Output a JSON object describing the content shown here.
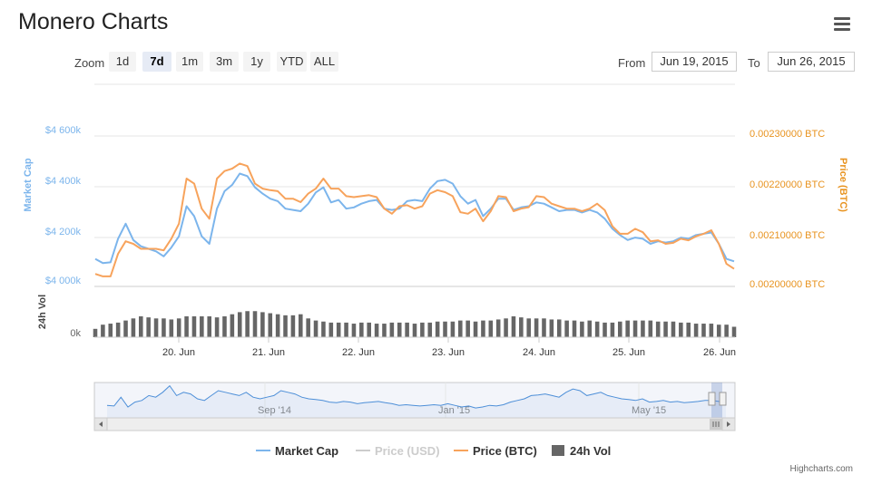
{
  "title": "Monero Charts",
  "menu_icon": "hamburger-menu-icon",
  "zoom": {
    "label": "Zoom",
    "buttons": [
      "1d",
      "7d",
      "1m",
      "3m",
      "1y",
      "YTD",
      "ALL"
    ],
    "active": "7d"
  },
  "range": {
    "from_label": "From",
    "from_value": "Jun 19, 2015",
    "to_label": "To",
    "to_value": "Jun 26, 2015"
  },
  "colors": {
    "market_cap": "#7cb5ec",
    "price_btc": "#f7a35c",
    "price_usd": "#cccccc",
    "volume": "#666666",
    "navigator": "#4d8fd8"
  },
  "chart_data": {
    "type": "line",
    "x_tick_labels": [
      "20. Jun",
      "21. Jun",
      "22. Jun",
      "23. Jun",
      "24. Jun",
      "25. Jun",
      "26. Jun"
    ],
    "left_axis": {
      "title": "Market Cap",
      "tick_labels": [
        "$4 000k",
        "$4 200k",
        "$4 400k",
        "$4 600k"
      ],
      "range": [
        4000,
        4600
      ]
    },
    "right_axis": {
      "title": "Price (BTC)",
      "tick_labels": [
        "0.00200000 BTC",
        "0.00210000 BTC",
        "0.00220000 BTC",
        "0.00230000 BTC"
      ],
      "range": [
        0.002,
        0.0023
      ]
    },
    "volume_axis": {
      "title": "24h Vol",
      "tick_labels": [
        "0k"
      ]
    },
    "series": [
      {
        "name": "Market Cap",
        "values": [
          4110,
          4093,
          4096,
          4190,
          4250,
          4185,
          4160,
          4150,
          4140,
          4120,
          4155,
          4200,
          4320,
          4280,
          4200,
          4170,
          4310,
          4380,
          4405,
          4450,
          4440,
          4395,
          4370,
          4350,
          4340,
          4310,
          4305,
          4300,
          4330,
          4375,
          4395,
          4335,
          4345,
          4310,
          4315,
          4330,
          4340,
          4345,
          4310,
          4305,
          4310,
          4340,
          4345,
          4340,
          4390,
          4420,
          4425,
          4410,
          4360,
          4330,
          4345,
          4280,
          4310,
          4350,
          4350,
          4305,
          4315,
          4320,
          4335,
          4330,
          4315,
          4300,
          4305,
          4305,
          4295,
          4305,
          4295,
          4270,
          4230,
          4205,
          4185,
          4195,
          4190,
          4170,
          4180,
          4175,
          4180,
          4195,
          4190,
          4205,
          4210,
          4215,
          4170,
          4110,
          4100
        ]
      },
      {
        "name": "Price (BTC)",
        "values": [
          0.002025,
          0.00202,
          0.00202,
          0.002065,
          0.00209,
          0.002085,
          0.002075,
          0.002075,
          0.002075,
          0.002072,
          0.002095,
          0.002125,
          0.002215,
          0.002205,
          0.002155,
          0.002135,
          0.002215,
          0.00223,
          0.002235,
          0.002245,
          0.00224,
          0.002205,
          0.002195,
          0.002192,
          0.00219,
          0.002175,
          0.002175,
          0.002168,
          0.002185,
          0.002195,
          0.002215,
          0.002195,
          0.002195,
          0.00218,
          0.002178,
          0.00218,
          0.002182,
          0.002178,
          0.002155,
          0.002145,
          0.00216,
          0.002162,
          0.002155,
          0.00216,
          0.002185,
          0.002192,
          0.002188,
          0.00218,
          0.002148,
          0.002145,
          0.002155,
          0.00213,
          0.00215,
          0.00218,
          0.002178,
          0.00215,
          0.002155,
          0.002158,
          0.00218,
          0.002178,
          0.002165,
          0.00216,
          0.002155,
          0.002155,
          0.00215,
          0.002155,
          0.002165,
          0.002152,
          0.00212,
          0.002105,
          0.002105,
          0.002115,
          0.002108,
          0.00209,
          0.002092,
          0.002085,
          0.002087,
          0.002095,
          0.002092,
          0.0021,
          0.002105,
          0.002112,
          0.002085,
          0.002045,
          0.002035
        ]
      },
      {
        "name": "24h Vol",
        "values": [
          8,
          12,
          13,
          14,
          16,
          18,
          20,
          19,
          18,
          18,
          17,
          18,
          20,
          20,
          20,
          20,
          19,
          20,
          22,
          24,
          25,
          25,
          24,
          23,
          22,
          21,
          21,
          22,
          18,
          16,
          15,
          14,
          14,
          14,
          13,
          14,
          14,
          13,
          13,
          14,
          14,
          14,
          13,
          14,
          14,
          15,
          15,
          15,
          16,
          16,
          15,
          16,
          16,
          17,
          18,
          20,
          19,
          18,
          18,
          18,
          17,
          17,
          16,
          16,
          15,
          16,
          15,
          14,
          14,
          15,
          16,
          16,
          16,
          16,
          15,
          15,
          15,
          14,
          14,
          13,
          13,
          13,
          12,
          12,
          10
        ]
      }
    ],
    "navigator": {
      "tick_labels": [
        "Sep '14",
        "Jan '15",
        "May '15"
      ],
      "values": [
        30,
        28,
        55,
        25,
        40,
        45,
        60,
        55,
        70,
        90,
        60,
        70,
        65,
        50,
        45,
        60,
        75,
        70,
        65,
        60,
        70,
        55,
        50,
        55,
        60,
        75,
        70,
        65,
        55,
        50,
        48,
        45,
        40,
        38,
        42,
        40,
        35,
        38,
        40,
        42,
        38,
        35,
        30,
        32,
        30,
        28,
        30,
        32,
        30,
        35,
        30,
        25,
        28,
        22,
        25,
        30,
        28,
        32,
        40,
        45,
        50,
        60,
        62,
        65,
        60,
        55,
        70,
        80,
        75,
        60,
        65,
        70,
        60,
        55,
        50,
        48,
        45,
        50,
        40,
        42,
        45,
        40,
        42,
        38,
        40,
        42,
        45,
        45,
        42,
        40
      ]
    },
    "legend": [
      "Market Cap",
      "Price (USD)",
      "Price (BTC)",
      "24h Vol"
    ],
    "grid": true
  },
  "credits": "Highcharts.com"
}
